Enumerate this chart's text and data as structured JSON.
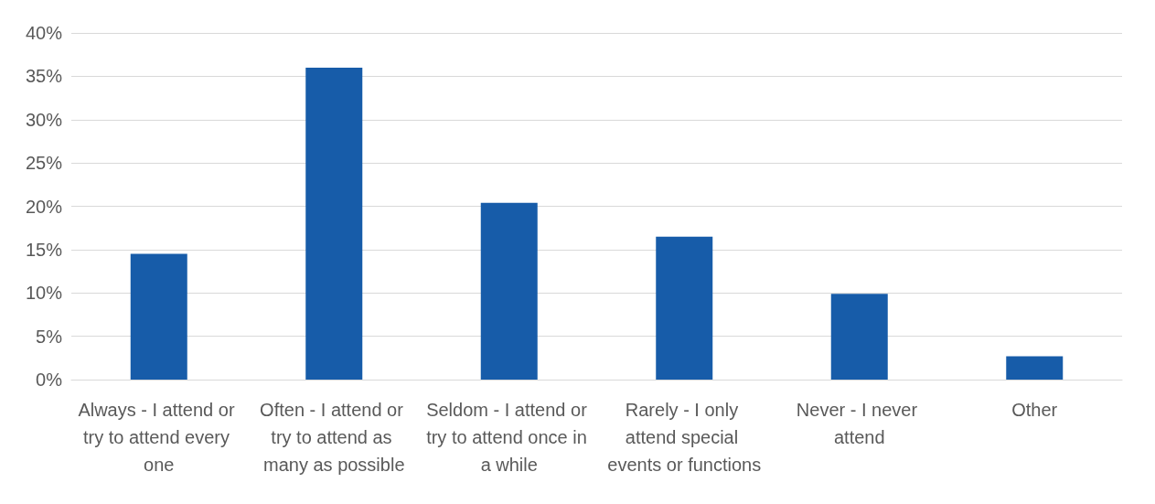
{
  "chart_data": {
    "type": "bar",
    "categories": [
      "Always - I attend or try to attend every one",
      "Often - I attend or try to attend as many as possible",
      "Seldom - I attend or try to attend once in a while",
      "Rarely - I only attend special events or functions",
      "Never - I never attend",
      "Other"
    ],
    "values": [
      14.5,
      36,
      20.4,
      16.5,
      9.9,
      2.7
    ],
    "color": "#175ca9",
    "ylim": [
      0,
      40
    ],
    "yticks": [
      {
        "value": 0,
        "label": "0%"
      },
      {
        "value": 5,
        "label": "5%"
      },
      {
        "value": 10,
        "label": "10%"
      },
      {
        "value": 15,
        "label": "15%"
      },
      {
        "value": 20,
        "label": "20%"
      },
      {
        "value": 25,
        "label": "25%"
      },
      {
        "value": 30,
        "label": "30%"
      },
      {
        "value": 35,
        "label": "35%"
      },
      {
        "value": 40,
        "label": "40%"
      }
    ],
    "grid": "y"
  }
}
